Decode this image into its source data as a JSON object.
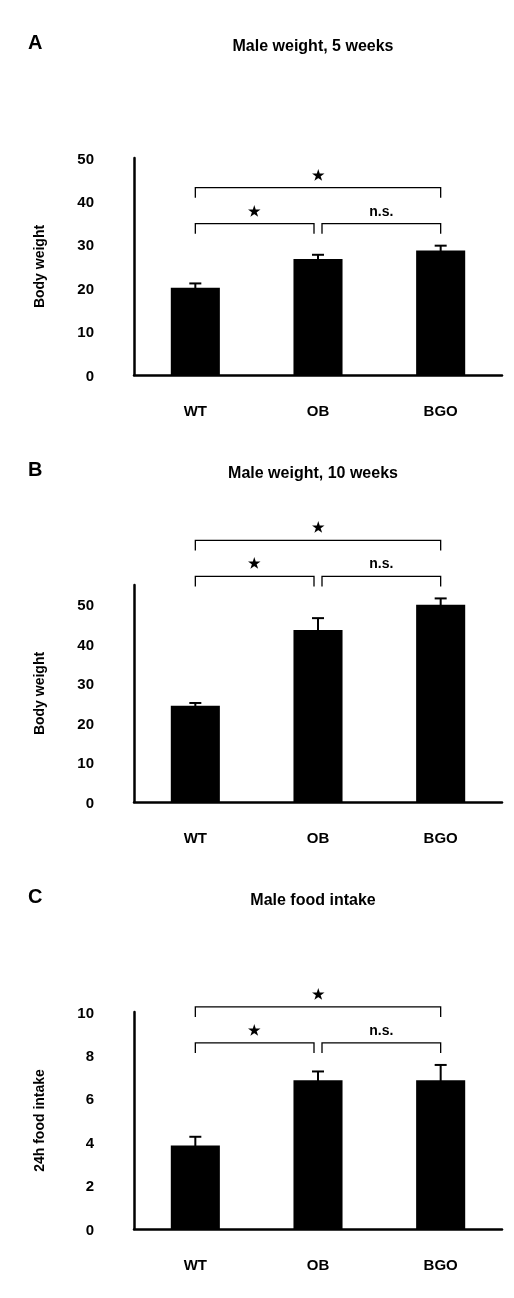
{
  "chart_data": [
    {
      "type": "bar",
      "title": "Male weight, 5 weeks",
      "ylabel": "Body weight",
      "categories": [
        "WT",
        "OB",
        "BGO"
      ],
      "values": [
        20.1,
        26.7,
        28.7
      ],
      "errors": [
        1,
        1,
        1.1
      ],
      "color": "#000000",
      "ylim": [
        0,
        50
      ],
      "yticks": [
        0,
        10,
        20,
        30,
        40,
        50
      ],
      "grid": false,
      "annotations": [
        "A",
        "★",
        "n.s.",
        "★"
      ]
    },
    {
      "type": "bar",
      "title": "Male weight, 10 weeks",
      "ylabel": "Body weight",
      "categories": [
        "WT",
        "OB",
        "BGO"
      ],
      "values": [
        24.4,
        43.6,
        50
      ],
      "errors": [
        0.7,
        3,
        1.6
      ],
      "color": "#000000",
      "ylim": [
        0,
        55
      ],
      "yticks": [
        0,
        10,
        20,
        30,
        40,
        50
      ],
      "grid": false,
      "annotations": [
        "B",
        "★",
        "n.s.",
        "★"
      ]
    },
    {
      "type": "bar",
      "title": "Male food intake",
      "ylabel": "24h food intake",
      "categories": [
        "WT",
        "OB",
        "BGO"
      ],
      "values": [
        3.85,
        6.86,
        6.86
      ],
      "errors": [
        0.4,
        0.4,
        0.7
      ],
      "color": "#000000",
      "ylim": [
        0,
        10
      ],
      "yticks": [
        0,
        2,
        4,
        6,
        8,
        10
      ],
      "grid": false,
      "annotations": [
        "C",
        "★",
        "n.s.",
        "★"
      ]
    }
  ]
}
